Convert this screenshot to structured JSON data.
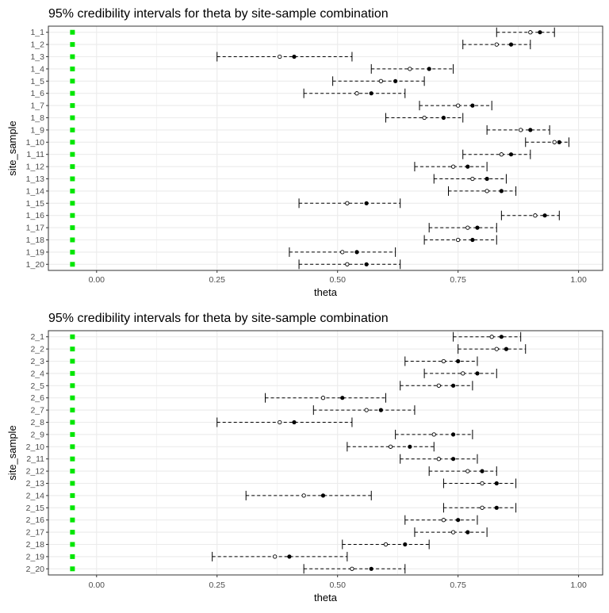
{
  "chart_data": [
    {
      "type": "interval",
      "title": "95% credibility intervals for theta by site-sample combination",
      "xlabel": "theta",
      "ylabel": "site_sample",
      "xlim": [
        -0.1,
        1.05
      ],
      "xticks": [
        0.0,
        0.25,
        0.5,
        0.75,
        1.0
      ],
      "xtick_labels": [
        "0.00",
        "0.25",
        "0.50",
        "0.75",
        "1.00"
      ],
      "grid": true,
      "reference_x": -0.05,
      "colors": {
        "reference": "#00e600",
        "interval": "#000000",
        "grid": "#ebebeb",
        "panel_border": "#333333"
      },
      "categories": [
        "1_1",
        "1_2",
        "1_3",
        "1_4",
        "1_5",
        "1_6",
        "1_7",
        "1_8",
        "1_9",
        "1_10",
        "1_11",
        "1_12",
        "1_13",
        "1_14",
        "1_15",
        "1_16",
        "1_17",
        "1_18",
        "1_19",
        "1_20"
      ],
      "lower": [
        0.83,
        0.76,
        0.25,
        0.57,
        0.49,
        0.43,
        0.67,
        0.6,
        0.81,
        0.89,
        0.76,
        0.66,
        0.7,
        0.73,
        0.42,
        0.84,
        0.69,
        0.68,
        0.4,
        0.42
      ],
      "upper": [
        0.95,
        0.9,
        0.53,
        0.74,
        0.68,
        0.64,
        0.82,
        0.76,
        0.94,
        0.98,
        0.9,
        0.81,
        0.85,
        0.87,
        0.63,
        0.96,
        0.83,
        0.83,
        0.62,
        0.63
      ],
      "open_point": [
        0.9,
        0.83,
        0.38,
        0.65,
        0.59,
        0.54,
        0.75,
        0.68,
        0.88,
        0.95,
        0.84,
        0.74,
        0.78,
        0.81,
        0.52,
        0.91,
        0.77,
        0.75,
        0.51,
        0.52
      ],
      "filled_point": [
        0.92,
        0.86,
        0.41,
        0.69,
        0.62,
        0.57,
        0.78,
        0.72,
        0.9,
        0.96,
        0.86,
        0.77,
        0.81,
        0.84,
        0.56,
        0.93,
        0.79,
        0.78,
        0.54,
        0.56
      ]
    },
    {
      "type": "interval",
      "title": "95% credibility intervals for theta by site-sample combination",
      "xlabel": "theta",
      "ylabel": "site_sample",
      "xlim": [
        -0.1,
        1.05
      ],
      "xticks": [
        0.0,
        0.25,
        0.5,
        0.75,
        1.0
      ],
      "xtick_labels": [
        "0.00",
        "0.25",
        "0.50",
        "0.75",
        "1.00"
      ],
      "grid": true,
      "reference_x": -0.05,
      "colors": {
        "reference": "#00e600",
        "interval": "#000000",
        "grid": "#ebebeb",
        "panel_border": "#333333"
      },
      "categories": [
        "2_1",
        "2_2",
        "2_3",
        "2_4",
        "2_5",
        "2_6",
        "2_7",
        "2_8",
        "2_9",
        "2_10",
        "2_11",
        "2_12",
        "2_13",
        "2_14",
        "2_15",
        "2_16",
        "2_17",
        "2_18",
        "2_19",
        "2_20"
      ],
      "lower": [
        0.74,
        0.75,
        0.64,
        0.68,
        0.63,
        0.35,
        0.45,
        0.25,
        0.62,
        0.52,
        0.63,
        0.69,
        0.72,
        0.31,
        0.72,
        0.64,
        0.66,
        0.51,
        0.24,
        0.43
      ],
      "upper": [
        0.88,
        0.89,
        0.79,
        0.83,
        0.78,
        0.6,
        0.66,
        0.53,
        0.78,
        0.7,
        0.79,
        0.83,
        0.87,
        0.57,
        0.87,
        0.79,
        0.81,
        0.69,
        0.52,
        0.64
      ],
      "open_point": [
        0.82,
        0.83,
        0.72,
        0.76,
        0.71,
        0.47,
        0.56,
        0.38,
        0.7,
        0.61,
        0.71,
        0.77,
        0.8,
        0.43,
        0.8,
        0.72,
        0.74,
        0.6,
        0.37,
        0.53
      ],
      "filled_point": [
        0.84,
        0.85,
        0.75,
        0.79,
        0.74,
        0.51,
        0.59,
        0.41,
        0.74,
        0.65,
        0.74,
        0.8,
        0.83,
        0.47,
        0.83,
        0.75,
        0.77,
        0.64,
        0.4,
        0.57
      ]
    }
  ]
}
